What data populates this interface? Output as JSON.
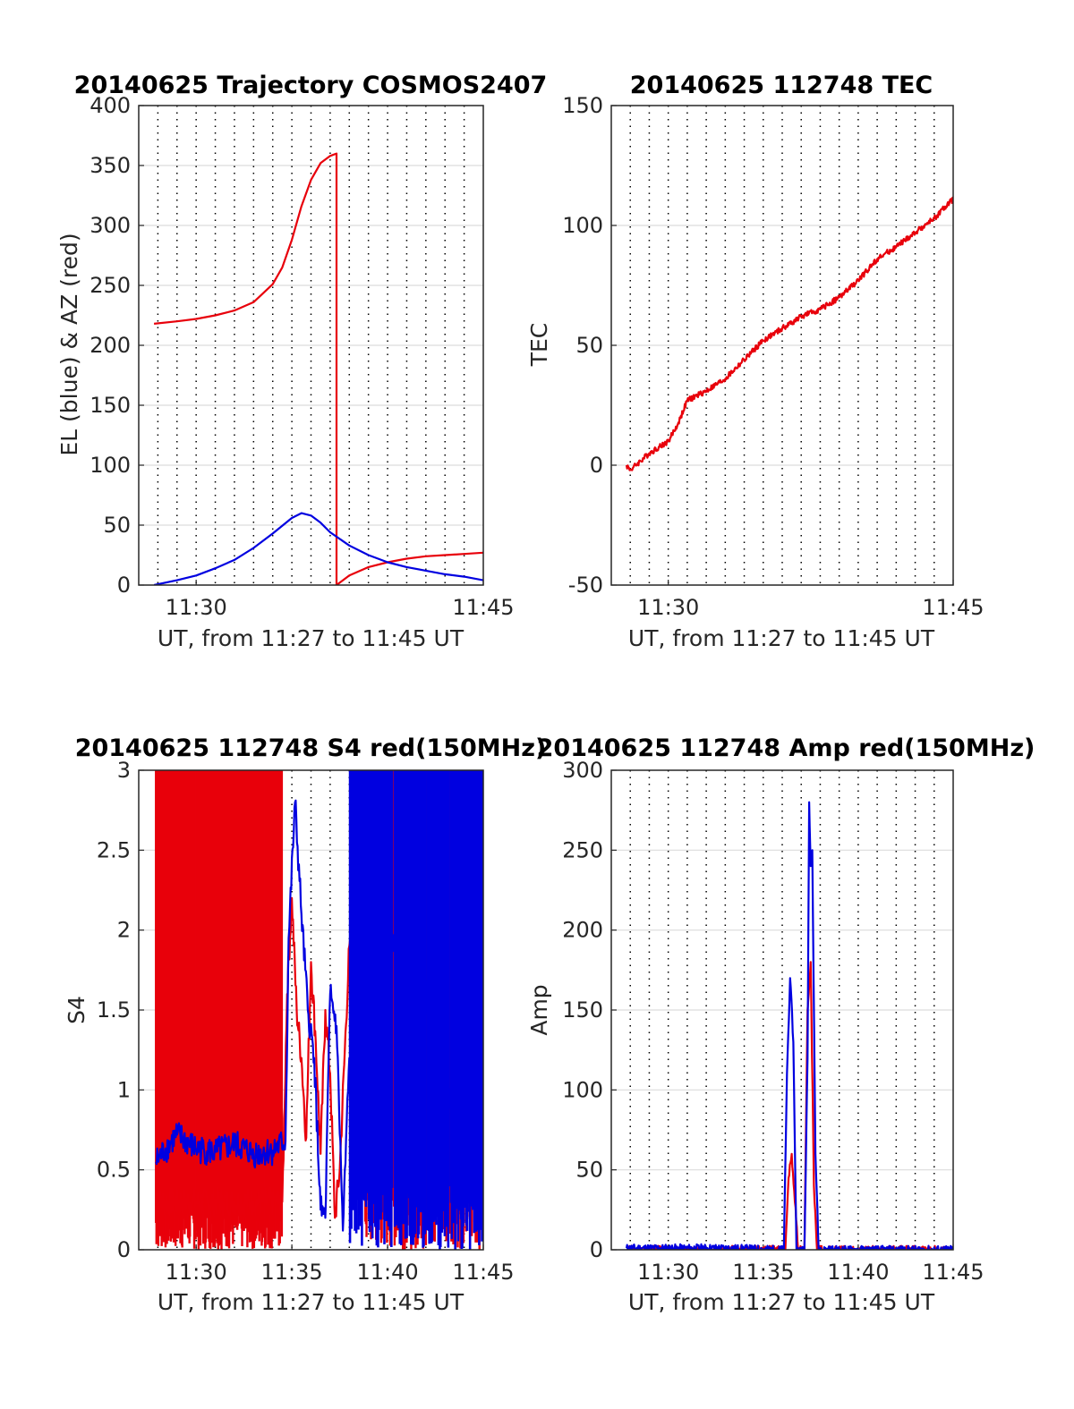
{
  "chart_data": [
    {
      "id": "trajectory",
      "type": "line",
      "title": "20140625 Trajectory COSMOS2407",
      "xlabel": "UT, from 11:27 to 11:45 UT",
      "ylabel": "EL (blue) & AZ (red)",
      "xlim": [
        "11:27",
        "11:45"
      ],
      "ylim": [
        0,
        400
      ],
      "yticks": [
        "0",
        "50",
        "100",
        "150",
        "200",
        "250",
        "300",
        "350",
        "400"
      ],
      "xticks": [
        "11:30",
        "11:45"
      ],
      "grid": true,
      "series": [
        {
          "color": "#e8000b",
          "x": [
            "11:27:48",
            "11:29:00",
            "11:30:00",
            "11:31:00",
            "11:32:00",
            "11:33:00",
            "11:34:00",
            "11:34:30",
            "11:35:00",
            "11:35:30",
            "11:36:00",
            "11:36:30",
            "11:37:00",
            "11:37:20",
            "11:37:20",
            "11:38:00",
            "11:39:00",
            "11:40:00",
            "11:41:00",
            "11:42:00",
            "11:43:00",
            "11:44:00",
            "11:45:00"
          ],
          "y": [
            218,
            220,
            222,
            225,
            229,
            236,
            251,
            265,
            288,
            316,
            338,
            352,
            358,
            360,
            0,
            8,
            15,
            19,
            22,
            24,
            25,
            26,
            27
          ]
        },
        {
          "color": "#0000e0",
          "x": [
            "11:27:48",
            "11:29:00",
            "11:30:00",
            "11:31:00",
            "11:32:00",
            "11:33:00",
            "11:34:00",
            "11:35:00",
            "11:35:30",
            "11:36:00",
            "11:36:30",
            "11:37:00",
            "11:38:00",
            "11:39:00",
            "11:40:00",
            "11:41:00",
            "11:42:00",
            "11:43:00",
            "11:44:00",
            "11:45:00"
          ],
          "y": [
            0,
            4,
            8,
            14,
            21,
            31,
            43,
            56,
            60,
            58,
            52,
            44,
            33,
            25,
            19,
            15,
            12,
            9,
            7,
            4
          ]
        }
      ]
    },
    {
      "id": "tec",
      "type": "line",
      "title": "20140625 112748 TEC",
      "xlabel": "UT, from 11:27 to 11:45 UT",
      "ylabel": "TEC",
      "xlim": [
        "11:27",
        "11:45"
      ],
      "ylim": [
        -50,
        150
      ],
      "yticks": [
        "-50",
        "0",
        "50",
        "100",
        "150"
      ],
      "xticks": [
        "11:30",
        "11:45"
      ],
      "grid": true,
      "series": [
        {
          "color": "#e8000b",
          "x": [
            "11:27:48",
            "11:28:00",
            "11:29:00",
            "11:30:00",
            "11:30:30",
            "11:31:00",
            "11:32:00",
            "11:33:00",
            "11:34:00",
            "11:35:00",
            "11:36:00",
            "11:37:00",
            "11:38:00",
            "11:39:00",
            "11:40:00",
            "11:41:00",
            "11:42:00",
            "11:43:00",
            "11:44:00",
            "11:45:00"
          ],
          "y": [
            0,
            -2,
            5,
            10,
            17,
            27,
            31,
            36,
            44,
            52,
            57,
            62,
            65,
            70,
            77,
            86,
            91,
            97,
            103,
            111
          ]
        }
      ]
    },
    {
      "id": "s4",
      "type": "line",
      "title": "20140625 112748 S4 red(150MHz)",
      "xlabel": "UT, from 11:27 to 11:45 UT",
      "ylabel": "S4",
      "xlim": [
        "11:27",
        "11:45"
      ],
      "ylim": [
        0,
        3
      ],
      "yticks": [
        "0",
        "0.5",
        "1",
        "1.5",
        "2",
        "2.5",
        "3"
      ],
      "xticks": [
        "11:30",
        "11:35",
        "11:40",
        "11:45"
      ],
      "grid": true,
      "series": [
        {
          "color": "#e8000b",
          "x": [
            "11:27:54",
            "11:30:00",
            "11:33:00",
            "11:34:30",
            "11:34:45",
            "11:35:00",
            "11:35:15",
            "11:35:30",
            "11:35:45",
            "11:36:00",
            "11:36:15",
            "11:36:30",
            "11:36:45",
            "11:37:00",
            "11:37:15",
            "11:37:30",
            "11:38:00",
            "11:39:00",
            "11:40:00",
            "11:41:00",
            "11:42:00",
            "11:43:00",
            "11:44:56"
          ],
          "y": [
            0.3,
            0.3,
            0.3,
            0.3,
            1.6,
            2.2,
            1.5,
            1.2,
            0.7,
            1.8,
            1.3,
            0.6,
            1.5,
            1.1,
            0.2,
            0.5,
            1.9,
            1.6,
            1.8,
            1.5,
            1.3,
            0.9,
            1.0
          ]
        },
        {
          "color": "#0000e0",
          "x": [
            "11:27:54",
            "11:29:00",
            "11:30:00",
            "11:31:00",
            "11:32:00",
            "11:33:00",
            "11:34:00",
            "11:34:40",
            "11:34:50",
            "11:35:10",
            "11:35:30",
            "11:35:50",
            "11:36:10",
            "11:36:30",
            "11:36:45",
            "11:37:00",
            "11:37:20",
            "11:37:40",
            "11:38:00",
            "11:39:00",
            "11:40:00",
            "11:41:00",
            "11:42:00",
            "11:43:00",
            "11:44:56"
          ],
          "y": [
            0.55,
            0.72,
            0.63,
            0.61,
            0.66,
            0.6,
            0.62,
            0.68,
            1.95,
            2.8,
            2.1,
            1.5,
            1.2,
            0.25,
            0.2,
            1.6,
            1.4,
            0.12,
            1.2,
            0.95,
            1.8,
            2.2,
            1.6,
            0.95,
            0.9
          ]
        }
      ]
    },
    {
      "id": "amp",
      "type": "line",
      "title": "20140625 112748 Amp red(150MHz)",
      "xlabel": "UT, from 11:27 to 11:45 UT",
      "ylabel": "Amp",
      "xlim": [
        "11:27",
        "11:45"
      ],
      "ylim": [
        0,
        300
      ],
      "yticks": [
        "0",
        "50",
        "100",
        "150",
        "200",
        "250",
        "300"
      ],
      "xticks": [
        "11:30",
        "11:35",
        "11:40",
        "11:45"
      ],
      "grid": true,
      "series": [
        {
          "color": "#e8000b",
          "x": [
            "11:27:48",
            "11:36:10",
            "11:36:20",
            "11:36:30",
            "11:36:40",
            "11:36:50",
            "11:37:10",
            "11:37:20",
            "11:37:30",
            "11:37:40",
            "11:37:50",
            "11:45:00"
          ],
          "y": [
            0,
            0,
            45,
            60,
            30,
            0,
            0,
            150,
            180,
            40,
            0,
            0
          ]
        },
        {
          "color": "#0000e0",
          "x": [
            "11:27:48",
            "11:30:00",
            "11:33:00",
            "11:36:05",
            "11:36:15",
            "11:36:25",
            "11:36:35",
            "11:36:45",
            "11:37:10",
            "11:37:20",
            "11:37:25",
            "11:37:30",
            "11:37:35",
            "11:37:45",
            "11:37:55",
            "11:45:00"
          ],
          "y": [
            1,
            1,
            1,
            0,
            110,
            170,
            130,
            0,
            0,
            120,
            280,
            240,
            250,
            60,
            0,
            0
          ]
        }
      ]
    }
  ]
}
